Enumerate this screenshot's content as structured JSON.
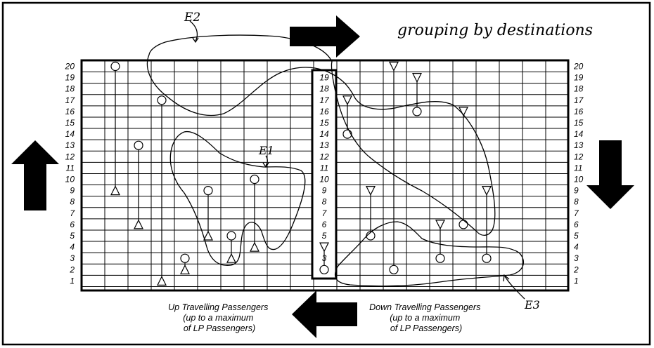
{
  "annotation_title": "grouping by destinations",
  "floors_left": [
    "20",
    "19",
    "18",
    "17",
    "16",
    "15",
    "14",
    "13",
    "12",
    "11",
    "10",
    "9",
    "8",
    "7",
    "6",
    "5",
    "4",
    "3",
    "2",
    "1"
  ],
  "floors_right": [
    "20",
    "19",
    "18",
    "17",
    "16",
    "15",
    "14",
    "13",
    "12",
    "11",
    "10",
    "9",
    "8",
    "7",
    "6",
    "5",
    "4",
    "3",
    "2",
    "1"
  ],
  "floors_center": [
    "19",
    "18",
    "17",
    "16",
    "15",
    "14",
    "13",
    "12",
    "11",
    "10",
    "9",
    "8",
    "7",
    "6",
    "5",
    "4",
    "3",
    "2"
  ],
  "groups": {
    "e1": "E1",
    "e2": "E2",
    "e3": "E3"
  },
  "caption_up": [
    "Up Travelling Passengers",
    "(up to a maximum",
    "of LP Passengers)"
  ],
  "caption_down": [
    "Down Travelling Passengers",
    "(up to a maximum",
    "of LP Passengers)"
  ],
  "icons": {
    "arrow_right": "arrow-right-icon",
    "arrow_up": "arrow-up-icon",
    "arrow_down": "arrow-down-icon",
    "arrow_left": "arrow-left-icon"
  },
  "passengers_up": [
    {
      "col": 4,
      "from": 9,
      "to": 20
    },
    {
      "col": 5,
      "from": 6,
      "to": 13
    },
    {
      "col": 6,
      "from": 1,
      "to": 17
    },
    {
      "col": 7,
      "from": 2,
      "to": 3
    },
    {
      "col": 8,
      "from": 5,
      "to": 9
    },
    {
      "col": 9,
      "from": 3,
      "to": 5
    },
    {
      "col": 10,
      "from": 4,
      "to": 10
    }
  ],
  "passengers_down": [
    {
      "col": 13,
      "from": 4,
      "to": 2
    },
    {
      "col": 14,
      "from": 17,
      "to": 14
    },
    {
      "col": 15,
      "from": 9,
      "to": 5
    },
    {
      "col": 16,
      "from": 20,
      "to": 2
    },
    {
      "col": 17,
      "from": 19,
      "to": 16
    },
    {
      "col": 18,
      "from": 6,
      "to": 3
    },
    {
      "col": 19,
      "from": 16,
      "to": 6
    },
    {
      "col": 20,
      "from": 9,
      "to": 3
    }
  ]
}
